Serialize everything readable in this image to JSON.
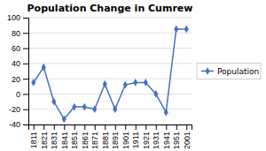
{
  "chart_data": {
    "type": "line",
    "title": "Population Change in Cumrew",
    "categories": [
      "1811",
      "1821",
      "1831",
      "1841",
      "1851",
      "1861",
      "1871",
      "1881",
      "1891",
      "1901",
      "1911",
      "1921",
      "1931",
      "1941",
      "1951",
      "2001"
    ],
    "series": [
      {
        "name": "Population",
        "color": "#4472C4",
        "marker": "diamond",
        "values": [
          15,
          35,
          -10,
          -33,
          -17,
          -17,
          -20,
          13,
          -20,
          12,
          15,
          15,
          0,
          -24,
          85,
          85
        ]
      }
    ],
    "ylim": [
      -40,
      100
    ],
    "yticks": [
      -40,
      -20,
      0,
      20,
      40,
      60,
      80,
      100
    ],
    "grid": true,
    "legend": "right"
  }
}
